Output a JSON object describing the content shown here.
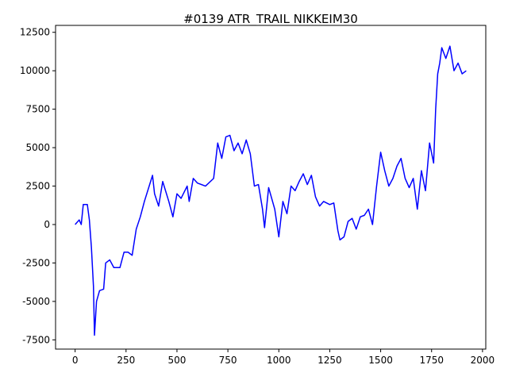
{
  "chart_data": {
    "type": "line",
    "title": "#0139 ATR_TRAIL NIKKEIM30",
    "x": [
      0,
      20,
      30,
      40,
      60,
      70,
      80,
      90,
      95,
      105,
      120,
      140,
      150,
      170,
      190,
      220,
      240,
      260,
      280,
      300,
      320,
      340,
      380,
      390,
      410,
      430,
      460,
      480,
      500,
      520,
      550,
      560,
      580,
      600,
      640,
      680,
      700,
      720,
      740,
      760,
      780,
      800,
      820,
      840,
      860,
      880,
      900,
      920,
      930,
      950,
      980,
      1000,
      1020,
      1040,
      1060,
      1080,
      1100,
      1120,
      1140,
      1160,
      1180,
      1200,
      1220,
      1250,
      1270,
      1290,
      1300,
      1320,
      1340,
      1360,
      1380,
      1400,
      1420,
      1440,
      1460,
      1480,
      1500,
      1520,
      1540,
      1560,
      1580,
      1600,
      1620,
      1640,
      1660,
      1680,
      1700,
      1720,
      1740,
      1760,
      1770,
      1780,
      1790,
      1800,
      1820,
      1840,
      1860,
      1880,
      1900,
      1920
    ],
    "series": [
      {
        "color": "#0000ff",
        "values": [
          0,
          300,
          0,
          1300,
          1300,
          300,
          -1500,
          -4000,
          -7200,
          -5000,
          -4300,
          -4200,
          -2500,
          -2300,
          -2800,
          -2800,
          -1800,
          -1800,
          -2000,
          -300,
          500,
          1500,
          3200,
          2000,
          1200,
          2800,
          1500,
          500,
          2000,
          1700,
          2500,
          1500,
          3000,
          2700,
          2500,
          3000,
          5300,
          4300,
          5700,
          5800,
          4800,
          5300,
          4600,
          5500,
          4600,
          2500,
          2600,
          1000,
          -200,
          2400,
          1000,
          -800,
          1500,
          700,
          2500,
          2200,
          2800,
          3300,
          2600,
          3200,
          1800,
          1200,
          1500,
          1300,
          1400,
          -400,
          -1000,
          -800,
          200,
          400,
          -300,
          500,
          600,
          1000,
          0,
          2500,
          4700,
          3500,
          2500,
          3000,
          3800,
          4300,
          3000,
          2400,
          3000,
          1000,
          3500,
          2200,
          5300,
          4000,
          7500,
          9800,
          10500,
          11500,
          10800,
          11600,
          10000,
          10500,
          9800,
          10000
        ]
      }
    ],
    "xlim": [
      -96,
      2016
    ],
    "xticks": [
      0,
      250,
      500,
      750,
      1000,
      1250,
      1500,
      1750,
      2000
    ],
    "ylim": [
      -8100,
      12950
    ],
    "yticks": [
      -7500,
      -5000,
      -2500,
      0,
      2500,
      5000,
      7500,
      10000,
      12500
    ]
  }
}
